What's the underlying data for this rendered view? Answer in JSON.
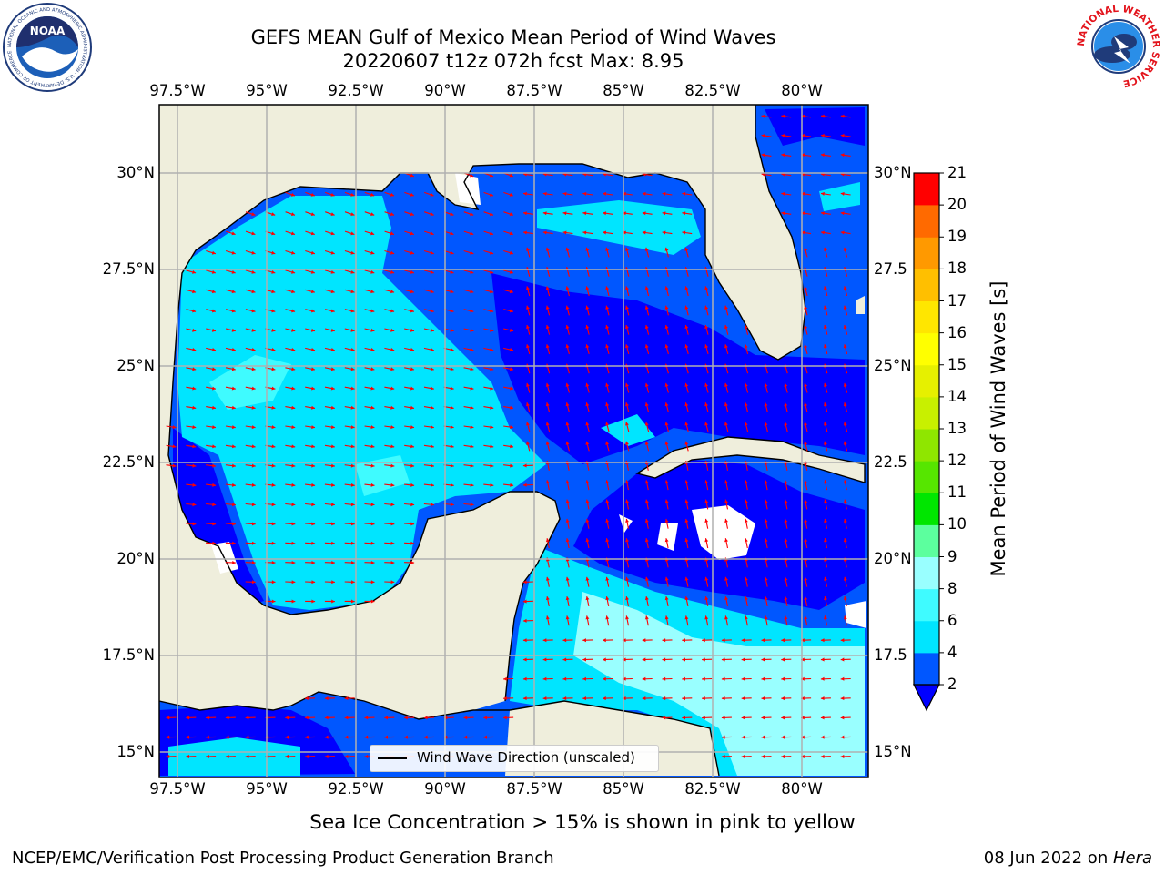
{
  "title": {
    "line1": "GEFS MEAN Gulf of Mexico Mean Period of Wind Waves",
    "line2": "20220607 t12z 072h fcst   Max: 8.95"
  },
  "map": {
    "lon_labels": [
      "97.5°W",
      "95°W",
      "92.5°W",
      "90°W",
      "87.5°W",
      "85°W",
      "82.5°W",
      "80°W"
    ],
    "lat_labels_left": [
      "30°N",
      "27.5°N",
      "25°N",
      "22.5°N",
      "20°N",
      "17.5°N",
      "15°N"
    ],
    "lat_labels_right": [
      "30°N",
      "27.5",
      "25°N",
      "22.5",
      "20°N",
      "17.5",
      "15°N"
    ],
    "legend_label": "Wind Wave Direction (unscaled)",
    "arrow_color": "#ff0000",
    "land_color": "#efeedc"
  },
  "colorbar": {
    "label": "Mean Period of Wind Waves [s]",
    "ticks": [
      "2",
      "4",
      "6",
      "8",
      "9",
      "10",
      "11",
      "12",
      "13",
      "14",
      "15",
      "16",
      "17",
      "18",
      "19",
      "20",
      "21"
    ],
    "colors": [
      "#0057ff",
      "#00e5ff",
      "#3ffbff",
      "#99ffff",
      "#5cff9e",
      "#00e600",
      "#56e600",
      "#8fe600",
      "#c8f000",
      "#e6f000",
      "#ffff00",
      "#ffe600",
      "#ffbf00",
      "#ff9900",
      "#ff6a00",
      "#ff3300",
      "#ff0000"
    ],
    "extend_color": "#0000ff"
  },
  "footer": {
    "sea_ice_note": "Sea Ice Concentration > 15% is shown in pink to yellow",
    "org": "NCEP/EMC/Verification Post Processing Product Generation Branch",
    "date": "08 Jun 2022 on ",
    "machine": "Hera"
  },
  "logos": {
    "noaa_text": "NOAA",
    "noaa_ring": "NATIONAL OCEANIC AND ATMOSPHERIC ADMINISTRATION · U.S. DEPARTMENT OF COMMERCE",
    "nws_ring": "NATIONAL WEATHER SERVICE"
  }
}
